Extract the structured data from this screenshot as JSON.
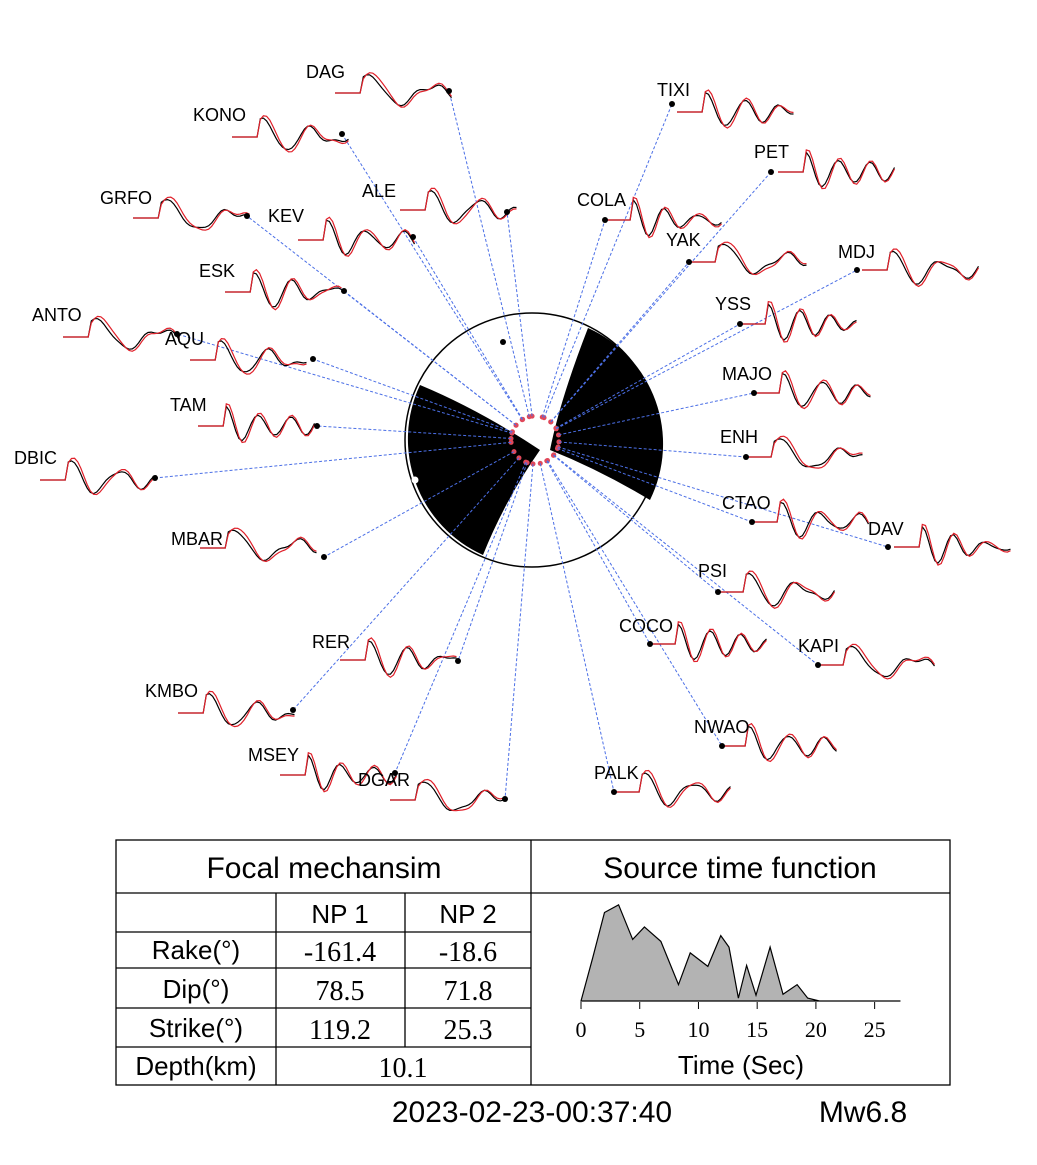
{
  "stations": [
    "DAG",
    "KONO",
    "TIXI",
    "PET",
    "GRFO",
    "ALE",
    "KEV",
    "COLA",
    "YAK",
    "MDJ",
    "ESK",
    "YSS",
    "ANTO",
    "AQU",
    "MAJO",
    "TAM",
    "ENH",
    "DBIC",
    "CTAO",
    "DAV",
    "MBAR",
    "PSI",
    "RER",
    "COCO",
    "KAPI",
    "KMBO",
    "NWAO",
    "MSEY",
    "DGAR",
    "PALK"
  ],
  "table": {
    "title": "Focal mechansim",
    "columns": [
      "NP 1",
      "NP 2"
    ],
    "rows": [
      {
        "label": "Rake(°)",
        "values": [
          -161.4,
          -18.6
        ]
      },
      {
        "label": "Dip(°)",
        "values": [
          78.5,
          71.8
        ]
      },
      {
        "label": "Strike(°)",
        "values": [
          119.2,
          25.3
        ]
      }
    ],
    "depth": {
      "label": "Depth(km)",
      "value": 10.1
    }
  },
  "chart_data": {
    "type": "area",
    "title": "Source time function",
    "xlabel": "Time (Sec)",
    "x": [
      0,
      1,
      2,
      3.2,
      4.4,
      5.4,
      6.8,
      8.3,
      9.3,
      10.8,
      11.9,
      12.6,
      13.4,
      14.1,
      14.9,
      16.1,
      17.2,
      18.4,
      19.3,
      20.3,
      27.2
    ],
    "values": [
      0,
      0.45,
      0.92,
      1.0,
      0.64,
      0.77,
      0.62,
      0.17,
      0.5,
      0.36,
      0.68,
      0.56,
      0.03,
      0.37,
      0.06,
      0.56,
      0.07,
      0.17,
      0.03,
      0,
      0
    ],
    "xlim": [
      0,
      27.5
    ],
    "xticks": [
      0,
      5,
      10,
      15,
      20,
      25
    ],
    "ylim": [
      0,
      1.05
    ],
    "color": "#b3b3b3"
  },
  "footer": {
    "datetime": "2023-02-23-00:37:40",
    "magnitude": "Mw6.8"
  }
}
